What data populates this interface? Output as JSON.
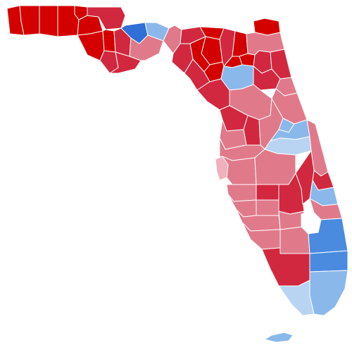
{
  "map": {
    "region": "Florida",
    "colors": {
      "strong_red": "#d40000",
      "red": "#d2283f",
      "light_red": "#e07a8a",
      "pale_red": "#f0b0bc",
      "strong_blue": "#2f6fd6",
      "blue": "#4a8be0",
      "light_blue": "#8ab8ea",
      "pale_blue": "#b8d4f2",
      "border": "#ffffff"
    },
    "counties": [
      {
        "key": "escambia",
        "fill": "strong_red"
      },
      {
        "key": "santa-rosa",
        "fill": "strong_red"
      },
      {
        "key": "okaloosa",
        "fill": "strong_red"
      },
      {
        "key": "walton",
        "fill": "strong_red"
      },
      {
        "key": "holmes",
        "fill": "strong_red"
      },
      {
        "key": "washington",
        "fill": "strong_red"
      },
      {
        "key": "bay",
        "fill": "strong_red"
      },
      {
        "key": "jackson",
        "fill": "red"
      },
      {
        "key": "calhoun",
        "fill": "strong_red"
      },
      {
        "key": "gulf",
        "fill": "red"
      },
      {
        "key": "liberty",
        "fill": "red"
      },
      {
        "key": "franklin",
        "fill": "red"
      },
      {
        "key": "gadsden",
        "fill": "strong_blue"
      },
      {
        "key": "leon",
        "fill": "light_blue"
      },
      {
        "key": "wakulla",
        "fill": "light_red"
      },
      {
        "key": "jefferson",
        "fill": "light_red"
      },
      {
        "key": "madison",
        "fill": "red"
      },
      {
        "key": "taylor",
        "fill": "red"
      },
      {
        "key": "hamilton",
        "fill": "strong_red"
      },
      {
        "key": "suwannee",
        "fill": "strong_red"
      },
      {
        "key": "lafayette",
        "fill": "strong_red"
      },
      {
        "key": "dixie",
        "fill": "red"
      },
      {
        "key": "columbia",
        "fill": "red"
      },
      {
        "key": "baker",
        "fill": "strong_red"
      },
      {
        "key": "union",
        "fill": "strong_red"
      },
      {
        "key": "bradford",
        "fill": "strong_red"
      },
      {
        "key": "gilchrist",
        "fill": "strong_red"
      },
      {
        "key": "levy",
        "fill": "red"
      },
      {
        "key": "alachua",
        "fill": "light_blue"
      },
      {
        "key": "nassau",
        "fill": "strong_red"
      },
      {
        "key": "duval",
        "fill": "light_red"
      },
      {
        "key": "clay",
        "fill": "red"
      },
      {
        "key": "st-johns",
        "fill": "red"
      },
      {
        "key": "putnam",
        "fill": "red"
      },
      {
        "key": "flagler",
        "fill": "light_red"
      },
      {
        "key": "marion",
        "fill": "light_red"
      },
      {
        "key": "volusia",
        "fill": "light_red"
      },
      {
        "key": "citrus",
        "fill": "red"
      },
      {
        "key": "sumter",
        "fill": "red"
      },
      {
        "key": "lake",
        "fill": "light_red"
      },
      {
        "key": "seminole",
        "fill": "light_blue"
      },
      {
        "key": "orange",
        "fill": "light_blue"
      },
      {
        "key": "osceola",
        "fill": "pale_blue"
      },
      {
        "key": "brevard",
        "fill": "light_red"
      },
      {
        "key": "hernando",
        "fill": "light_red"
      },
      {
        "key": "pasco",
        "fill": "light_red"
      },
      {
        "key": "pinellas",
        "fill": "pale_red"
      },
      {
        "key": "hillsborough",
        "fill": "light_red"
      },
      {
        "key": "polk",
        "fill": "light_red"
      },
      {
        "key": "indian-river",
        "fill": "red"
      },
      {
        "key": "manatee",
        "fill": "light_red"
      },
      {
        "key": "hardee",
        "fill": "red"
      },
      {
        "key": "highlands",
        "fill": "red"
      },
      {
        "key": "okeechobee",
        "fill": "red"
      },
      {
        "key": "st-lucie",
        "fill": "light_blue"
      },
      {
        "key": "martin",
        "fill": "light_red"
      },
      {
        "key": "sarasota",
        "fill": "light_red"
      },
      {
        "key": "desoto",
        "fill": "light_red"
      },
      {
        "key": "charlotte",
        "fill": "light_red"
      },
      {
        "key": "glades",
        "fill": "light_red"
      },
      {
        "key": "lee",
        "fill": "light_red"
      },
      {
        "key": "hendry",
        "fill": "light_red"
      },
      {
        "key": "palm-beach",
        "fill": "blue"
      },
      {
        "key": "collier",
        "fill": "red"
      },
      {
        "key": "broward",
        "fill": "blue"
      },
      {
        "key": "miami-dade",
        "fill": "light_blue"
      },
      {
        "key": "monroe",
        "fill": "pale_blue"
      },
      {
        "key": "monroe-keys",
        "fill": "light_blue"
      },
      {
        "key": "lake-okeechobee",
        "fill": "border"
      }
    ]
  }
}
